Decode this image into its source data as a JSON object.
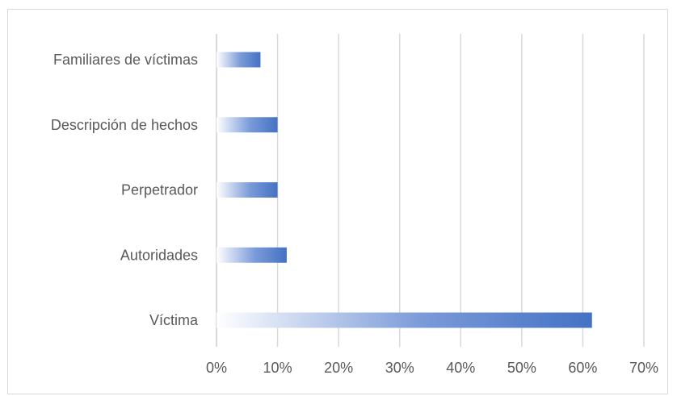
{
  "chart_data": {
    "type": "bar",
    "orientation": "horizontal",
    "categories": [
      "Víctima",
      "Autoridades",
      "Perpetrador",
      "Descripción de hechos",
      "Familiares de víctimas"
    ],
    "values": [
      61.5,
      11.5,
      10,
      10,
      7.2
    ],
    "title": "",
    "xlabel": "",
    "ylabel": "",
    "xlim": [
      0,
      70
    ],
    "xticks": [
      0,
      10,
      20,
      30,
      40,
      50,
      60,
      70
    ],
    "xtick_labels": [
      "0%",
      "10%",
      "20%",
      "30%",
      "40%",
      "50%",
      "60%",
      "70%"
    ],
    "grid": "vertical",
    "legend": "none",
    "colors": {
      "bar": "#4472c4",
      "bar_fade": "#ffffff",
      "grid": "#d9d9d9",
      "text": "#595959"
    }
  }
}
